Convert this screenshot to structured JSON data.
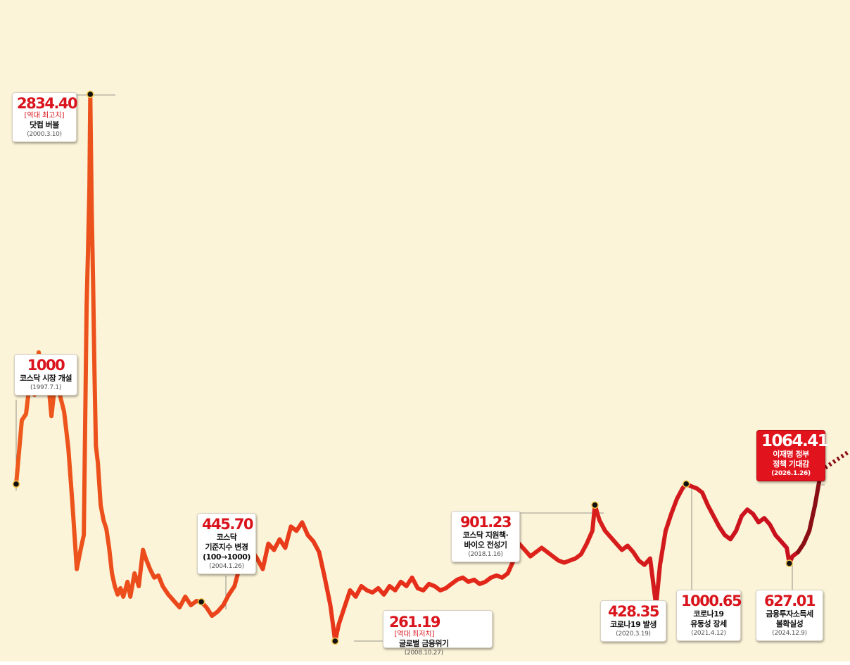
{
  "chart_data": {
    "type": "line",
    "title": "",
    "xlabel": "",
    "ylabel": "",
    "colors": {
      "start": "#ee5a1c",
      "mid": "#e52a1a",
      "end": "#c70f1e",
      "latest": "#8a0e14",
      "background": "#fcf4d8"
    },
    "ylim": [
      0,
      3000
    ],
    "series": [
      {
        "name": "",
        "values": [
          [
            1997.5,
            1000
          ],
          [
            1997.7,
            1300
          ],
          [
            1997.85,
            1330
          ],
          [
            1998.0,
            1500
          ],
          [
            1998.15,
            1420
          ],
          [
            1998.3,
            1620
          ],
          [
            1998.45,
            1450
          ],
          [
            1998.6,
            1540
          ],
          [
            1998.75,
            1320
          ],
          [
            1998.9,
            1500
          ],
          [
            1999.05,
            1420
          ],
          [
            1999.2,
            1340
          ],
          [
            1999.35,
            1170
          ],
          [
            1999.5,
            900
          ],
          [
            1999.65,
            600
          ],
          [
            1999.8,
            700
          ],
          [
            1999.9,
            760
          ],
          [
            2000.0,
            1840
          ],
          [
            2000.05,
            2100
          ],
          [
            2000.1,
            2400
          ],
          [
            2000.13,
            2834.4
          ],
          [
            2000.18,
            2300
          ],
          [
            2000.23,
            1950
          ],
          [
            2000.28,
            1520
          ],
          [
            2000.33,
            1180
          ],
          [
            2000.4,
            1100
          ],
          [
            2000.5,
            900
          ],
          [
            2000.6,
            830
          ],
          [
            2000.7,
            790
          ],
          [
            2000.8,
            700
          ],
          [
            2000.9,
            580
          ],
          [
            2001.0,
            520
          ],
          [
            2001.1,
            480
          ],
          [
            2001.2,
            510
          ],
          [
            2001.3,
            470
          ],
          [
            2001.45,
            540
          ],
          [
            2001.55,
            470
          ],
          [
            2001.7,
            580
          ],
          [
            2001.85,
            520
          ],
          [
            2002.0,
            690
          ],
          [
            2002.1,
            650
          ],
          [
            2002.25,
            600
          ],
          [
            2002.4,
            560
          ],
          [
            2002.55,
            570
          ],
          [
            2002.7,
            520
          ],
          [
            2002.9,
            480
          ],
          [
            2003.1,
            450
          ],
          [
            2003.3,
            420
          ],
          [
            2003.5,
            470
          ],
          [
            2003.7,
            430
          ],
          [
            2003.9,
            450
          ],
          [
            2004.07,
            445.7
          ],
          [
            2004.25,
            420
          ],
          [
            2004.45,
            380
          ],
          [
            2004.65,
            400
          ],
          [
            2004.85,
            430
          ],
          [
            2005.05,
            480
          ],
          [
            2005.25,
            520
          ],
          [
            2005.45,
            620
          ],
          [
            2005.65,
            600
          ],
          [
            2005.85,
            690
          ],
          [
            2006.05,
            650
          ],
          [
            2006.25,
            600
          ],
          [
            2006.45,
            720
          ],
          [
            2006.65,
            690
          ],
          [
            2006.85,
            740
          ],
          [
            2007.05,
            700
          ],
          [
            2007.25,
            800
          ],
          [
            2007.45,
            780
          ],
          [
            2007.65,
            820
          ],
          [
            2007.85,
            760
          ],
          [
            2008.05,
            730
          ],
          [
            2008.25,
            680
          ],
          [
            2008.45,
            560
          ],
          [
            2008.65,
            430
          ],
          [
            2008.82,
            261.19
          ],
          [
            2008.95,
            340
          ],
          [
            2009.15,
            420
          ],
          [
            2009.35,
            500
          ],
          [
            2009.55,
            470
          ],
          [
            2009.75,
            520
          ],
          [
            2009.95,
            500
          ],
          [
            2010.15,
            490
          ],
          [
            2010.35,
            510
          ],
          [
            2010.55,
            480
          ],
          [
            2010.75,
            520
          ],
          [
            2010.95,
            500
          ],
          [
            2011.15,
            540
          ],
          [
            2011.35,
            520
          ],
          [
            2011.55,
            560
          ],
          [
            2011.75,
            510
          ],
          [
            2011.95,
            500
          ],
          [
            2012.15,
            530
          ],
          [
            2012.35,
            520
          ],
          [
            2012.55,
            500
          ],
          [
            2012.75,
            510
          ],
          [
            2012.95,
            530
          ],
          [
            2013.15,
            550
          ],
          [
            2013.35,
            560
          ],
          [
            2013.55,
            540
          ],
          [
            2013.75,
            550
          ],
          [
            2013.95,
            530
          ],
          [
            2014.15,
            540
          ],
          [
            2014.35,
            560
          ],
          [
            2014.55,
            570
          ],
          [
            2014.75,
            560
          ],
          [
            2014.95,
            580
          ],
          [
            2015.15,
            640
          ],
          [
            2015.35,
            720
          ],
          [
            2015.55,
            690
          ],
          [
            2015.75,
            660
          ],
          [
            2015.95,
            680
          ],
          [
            2016.15,
            700
          ],
          [
            2016.35,
            680
          ],
          [
            2016.55,
            660
          ],
          [
            2016.75,
            640
          ],
          [
            2016.95,
            630
          ],
          [
            2017.15,
            640
          ],
          [
            2017.35,
            650
          ],
          [
            2017.55,
            670
          ],
          [
            2017.75,
            720
          ],
          [
            2017.95,
            780
          ],
          [
            2018.04,
            901.23
          ],
          [
            2018.2,
            830
          ],
          [
            2018.4,
            780
          ],
          [
            2018.6,
            750
          ],
          [
            2018.8,
            720
          ],
          [
            2019.0,
            690
          ],
          [
            2019.2,
            710
          ],
          [
            2019.4,
            680
          ],
          [
            2019.6,
            640
          ],
          [
            2019.8,
            620
          ],
          [
            2020.0,
            650
          ],
          [
            2020.21,
            428.35
          ],
          [
            2020.35,
            620
          ],
          [
            2020.55,
            780
          ],
          [
            2020.75,
            860
          ],
          [
            2020.95,
            930
          ],
          [
            2021.15,
            980
          ],
          [
            2021.28,
            1000.65
          ],
          [
            2021.45,
            990
          ],
          [
            2021.65,
            980
          ],
          [
            2021.85,
            960
          ],
          [
            2022.05,
            900
          ],
          [
            2022.25,
            850
          ],
          [
            2022.45,
            800
          ],
          [
            2022.65,
            760
          ],
          [
            2022.85,
            740
          ],
          [
            2023.05,
            780
          ],
          [
            2023.25,
            850
          ],
          [
            2023.45,
            880
          ],
          [
            2023.65,
            860
          ],
          [
            2023.85,
            820
          ],
          [
            2024.05,
            840
          ],
          [
            2024.25,
            810
          ],
          [
            2024.45,
            760
          ],
          [
            2024.65,
            730
          ],
          [
            2024.85,
            700
          ],
          [
            2024.94,
            627.01
          ],
          [
            2025.05,
            660
          ],
          [
            2025.25,
            680
          ],
          [
            2025.45,
            720
          ],
          [
            2025.65,
            780
          ],
          [
            2025.85,
            900
          ],
          [
            2026.07,
            1064.41
          ]
        ]
      }
    ],
    "annotations": [
      {
        "id": "open",
        "x": 1997.5,
        "value": "1000",
        "sub": "",
        "label": "코스닥 시장 개설",
        "date": "(1997.7.1)"
      },
      {
        "id": "peak",
        "x": 2000.13,
        "value": "2834.40",
        "sub": "[역대 최고치]",
        "label": "닷컴 버블",
        "date": "(2000.3.10)"
      },
      {
        "id": "rebase",
        "x": 2004.07,
        "value": "445.70",
        "sub": "",
        "label": "코스닥\n기준지수 변경\n(100→1000)",
        "date": "(2004.1.26)"
      },
      {
        "id": "low",
        "x": 2008.82,
        "value": "261.19",
        "sub": "[역대 최저치]",
        "label": "글로벌 금융위기",
        "date": "(2008.10.27)"
      },
      {
        "id": "bio",
        "x": 2018.04,
        "value": "901.23",
        "sub": "",
        "label": "코스닥 지원책·\n바이오 전성기",
        "date": "(2018.1.16)"
      },
      {
        "id": "covid",
        "x": 2020.21,
        "value": "428.35",
        "sub": "",
        "label": "코로나19 발생",
        "date": "(2020.3.19)"
      },
      {
        "id": "liquidity",
        "x": 2021.28,
        "value": "1000.65",
        "sub": "",
        "label": "코로나19\n유동성 장세",
        "date": "(2021.4.12)"
      },
      {
        "id": "tax",
        "x": 2024.94,
        "value": "627.01",
        "sub": "",
        "label": "금융투자소득세\n불확실성",
        "date": "(2024.12.9)"
      },
      {
        "id": "latest",
        "x": 2026.07,
        "value": "1064.41",
        "sub": "",
        "label": "이재명 정부\n정책 기대감",
        "date": "(2026.1.26)"
      }
    ]
  }
}
